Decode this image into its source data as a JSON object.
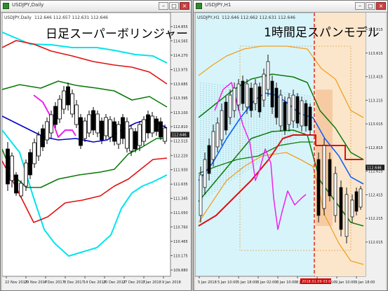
{
  "left_window": {
    "window_title": "USDJPY,Daily",
    "symbol_label": "USDJPY,Daily",
    "quote": "112.646 112.657 112.631 112.646",
    "overlay_title": "日足スーパーボリンジャー",
    "price_labels": [
      "114.855",
      "114.565",
      "114.270",
      "113.975",
      "113.685",
      "113.395",
      "113.100",
      "112.810",
      "112.515",
      "112.220",
      "111.930",
      "111.635",
      "111.345",
      "111.050",
      "110.760",
      "110.465",
      "110.175",
      "109.880"
    ],
    "current_price": "112.646",
    "date_labels": [
      "22 Nov 2017",
      "29 Nov 2017",
      "4 Dec 2017",
      "8 Dec 2017",
      "14 Dec 2017",
      "20 Dec 2017",
      "27 Dec 2017",
      "3 Jan 2018",
      "9 Jan 2018"
    ],
    "window_controls": [
      "–",
      "□",
      "×"
    ]
  },
  "right_window": {
    "window_title": "USDJPY,H1",
    "symbol_label": "USDJPY,H1",
    "quote": "112.646 112.662 112.631 112.646",
    "overlay_title": "1時間足スパンモデル",
    "price_labels": [
      "113.815",
      "113.615",
      "113.415",
      "113.215",
      "113.015",
      "112.815",
      "112.615",
      "112.415",
      "112.215",
      "112.015"
    ],
    "current_price": "112.646",
    "date_labels": [
      "5 Jan 2018",
      "5 Jan 10:00",
      "5 Jan 18:00",
      "8 Jan 02:00",
      "8 Jan 10:00",
      "8 Jan 18:00",
      "9 Jan 03:00",
      "9 Jan 10:00",
      "9 Jan 18:00"
    ],
    "vline_label": "2018.01.09 03:00",
    "window_controls": [
      "–",
      "□",
      "×"
    ]
  },
  "colors": {
    "left_plot_bg": "#ffffff",
    "right_plot_bg": "#d8f4fb",
    "band_3sigma": "#00e5ee",
    "band_2sigma": "#e01010",
    "band_1sigma": "#0a7a0a",
    "midline": "#0000cc",
    "lagging_span": "#ee22ee",
    "right_outer_band": "#f0a020",
    "right_green": "#0a7a0a",
    "right_blue": "#1060ff",
    "right_red": "#e01010",
    "right_magenta": "#ee22ee",
    "right_shade": "#f5c8a0",
    "right_future_bg": "#fbe6cc",
    "price_tag_bg": "#222222"
  },
  "icons": [
    "chart-window-icon",
    "minimize-icon",
    "maximize-icon",
    "close-icon"
  ]
}
